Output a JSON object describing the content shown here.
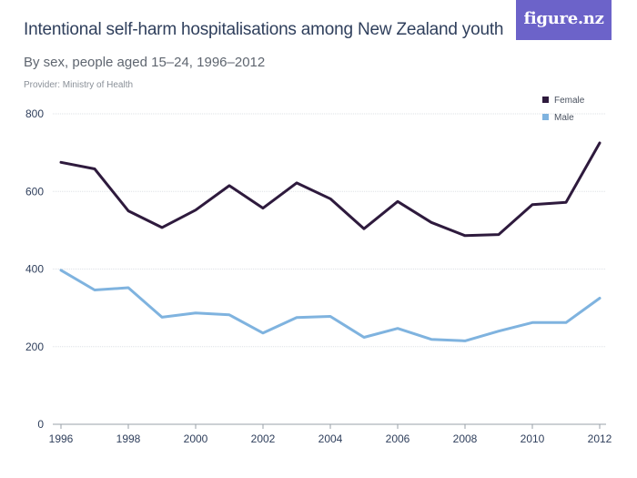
{
  "header": {
    "title": "Intentional self-harm hospitalisations among New Zealand youth",
    "subtitle": "By sex, people aged 15–24, 1996–2012",
    "provider": "Provider: Ministry of Health",
    "logo_text": "figure.nz"
  },
  "colors": {
    "female": "#2e1a3d",
    "male": "#7fb3df",
    "grid": "#dde1e6",
    "logo_bg": "#6c63c9"
  },
  "chart_data": {
    "type": "line",
    "title": "Intentional self-harm hospitalisations among New Zealand youth",
    "subtitle": "By sex, people aged 15–24, 1996–2012",
    "x": [
      1996,
      1997,
      1998,
      1999,
      2000,
      2001,
      2002,
      2003,
      2004,
      2005,
      2006,
      2007,
      2008,
      2009,
      2010,
      2011,
      2012
    ],
    "xticks": [
      "1996",
      "1998",
      "2000",
      "2002",
      "2004",
      "2006",
      "2008",
      "2010",
      "2012"
    ],
    "yticks": [
      "0",
      "200",
      "400",
      "600",
      "800"
    ],
    "xlim": [
      1996,
      2012
    ],
    "ylim": [
      0,
      800
    ],
    "grid": true,
    "legend_position": "top-right",
    "series": [
      {
        "name": "Female",
        "color": "#2e1a3d",
        "values": [
          675,
          658,
          550,
          507,
          552,
          615,
          557,
          622,
          581,
          504,
          574,
          520,
          486,
          489,
          566,
          572,
          725
        ]
      },
      {
        "name": "Male",
        "color": "#7fb3df",
        "values": [
          397,
          346,
          352,
          276,
          287,
          282,
          235,
          275,
          278,
          224,
          247,
          219,
          215,
          240,
          262,
          262,
          325
        ]
      }
    ]
  }
}
